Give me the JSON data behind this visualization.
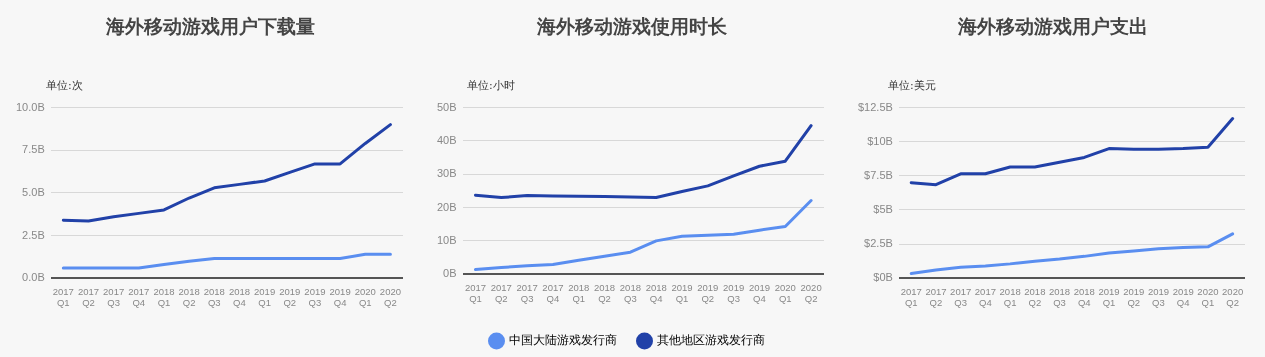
{
  "chart_data": [
    {
      "type": "line",
      "title": "海外移动游戏用户下载量",
      "ylabel": "单位:次",
      "categories": [
        "2017 Q1",
        "2017 Q2",
        "2017 Q3",
        "2017 Q4",
        "2018 Q1",
        "2018 Q2",
        "2018 Q3",
        "2018 Q4",
        "2019 Q1",
        "2019 Q2",
        "2019 Q3",
        "2019 Q4",
        "2020 Q1",
        "2020 Q2"
      ],
      "series": [
        {
          "color": "#5a8ef0",
          "values": [
            0.6,
            0.6,
            0.6,
            0.6,
            0.8,
            1.0,
            1.15,
            1.15,
            1.15,
            1.15,
            1.15,
            1.15,
            1.4,
            1.4
          ]
        },
        {
          "color": "#2141a8",
          "values": [
            3.4,
            3.35,
            3.6,
            3.8,
            4.0,
            4.7,
            5.3,
            5.5,
            5.7,
            6.2,
            6.7,
            6.7,
            7.9,
            9.0
          ]
        }
      ],
      "ylim": [
        0,
        10
      ],
      "yticks": [
        {
          "value": 0,
          "label": "0.0B"
        },
        {
          "value": 2.5,
          "label": "2.5B"
        },
        {
          "value": 5,
          "label": "5.0B"
        },
        {
          "value": 7.5,
          "label": "7.5B"
        },
        {
          "value": 10,
          "label": "10.0B"
        }
      ],
      "grid": "y",
      "legend": false,
      "marker": "none",
      "line_style": "solid"
    },
    {
      "type": "line",
      "title": "海外移动游戏使用时长",
      "ylabel": "单位:小时",
      "categories": [
        "2017 Q1",
        "2017 Q2",
        "2017 Q3",
        "2017 Q4",
        "2018 Q1",
        "2018 Q2",
        "2018 Q3",
        "2018 Q4",
        "2019 Q1",
        "2019 Q2",
        "2019 Q3",
        "2019 Q4",
        "2020 Q1",
        "2020 Q2"
      ],
      "series": [
        {
          "name": "中国大陆游戏发行商",
          "color": "#5a8ef0",
          "values": [
            1.4,
            2.0,
            2.5,
            2.9,
            4.2,
            5.4,
            6.6,
            10.0,
            11.4,
            11.7,
            12.0,
            13.2,
            14.3,
            22.1
          ]
        },
        {
          "name": "其他地区游戏发行商",
          "color": "#2141a8",
          "values": [
            23.7,
            23.0,
            23.6,
            23.5,
            23.4,
            23.3,
            23.2,
            23.0,
            24.8,
            26.5,
            29.5,
            32.4,
            33.9,
            44.6
          ]
        }
      ],
      "ylim": [
        0,
        50
      ],
      "yticks": [
        {
          "value": 0,
          "label": "0B"
        },
        {
          "value": 10,
          "label": "10B"
        },
        {
          "value": 20,
          "label": "20B"
        },
        {
          "value": 30,
          "label": "30B"
        },
        {
          "value": 40,
          "label": "40B"
        },
        {
          "value": 50,
          "label": "50B"
        }
      ],
      "grid": "y",
      "legend": "bottom",
      "marker": "none",
      "line_style": "solid"
    },
    {
      "type": "line",
      "title": "海外移动游戏用户支出",
      "ylabel": "单位:美元",
      "categories": [
        "2017 Q1",
        "2017 Q2",
        "2017 Q3",
        "2017 Q4",
        "2018 Q1",
        "2018 Q2",
        "2018 Q3",
        "2018 Q4",
        "2019 Q1",
        "2019 Q2",
        "2019 Q3",
        "2019 Q4",
        "2020 Q1",
        "2020 Q2"
      ],
      "series": [
        {
          "color": "#5a8ef0",
          "values": [
            0.35,
            0.6,
            0.8,
            0.9,
            1.05,
            1.25,
            1.4,
            1.6,
            1.85,
            2.0,
            2.15,
            2.25,
            2.3,
            3.25
          ]
        },
        {
          "color": "#2141a8",
          "values": [
            7.0,
            6.85,
            7.65,
            7.65,
            8.15,
            8.15,
            8.5,
            8.85,
            9.5,
            9.45,
            9.45,
            9.5,
            9.6,
            11.7
          ]
        }
      ],
      "ylim": [
        0,
        12.5
      ],
      "yticks": [
        {
          "value": 0,
          "label": "$0B"
        },
        {
          "value": 2.5,
          "label": "$2.5B"
        },
        {
          "value": 5,
          "label": "$5B"
        },
        {
          "value": 7.5,
          "label": "$7.5B"
        },
        {
          "value": 10,
          "label": "$10B"
        },
        {
          "value": 12.5,
          "label": "$12.5B"
        }
      ],
      "grid": "y",
      "legend": false,
      "marker": "none",
      "line_style": "solid"
    }
  ]
}
